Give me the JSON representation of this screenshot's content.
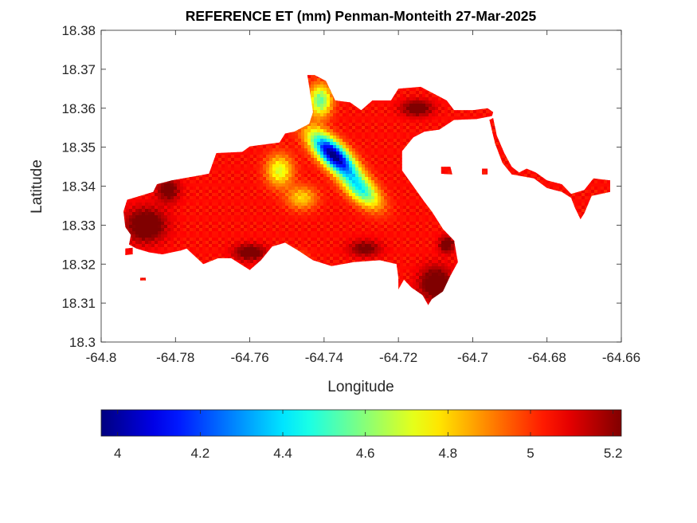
{
  "chart_data": {
    "type": "heatmap",
    "title": "REFERENCE ET (mm) Penman-Monteith 27-Mar-2025",
    "xlabel": "Longitude",
    "ylabel": "Latitude",
    "xlim": [
      -64.8,
      -64.66
    ],
    "ylim": [
      18.3,
      18.38
    ],
    "xticks": [
      -64.8,
      -64.78,
      -64.76,
      -64.74,
      -64.72,
      -64.7,
      -64.68,
      -64.66
    ],
    "xtick_labels": [
      "-64.8",
      "-64.78",
      "-64.76",
      "-64.74",
      "-64.72",
      "-64.7",
      "-64.68",
      "-64.66"
    ],
    "yticks": [
      18.3,
      18.31,
      18.32,
      18.33,
      18.34,
      18.35,
      18.36,
      18.37,
      18.38
    ],
    "ytick_labels": [
      "18.3",
      "18.31",
      "18.32",
      "18.33",
      "18.34",
      "18.35",
      "18.36",
      "18.37",
      "18.38"
    ],
    "colorbar": {
      "colormap": "jet",
      "range": [
        3.96,
        5.22
      ],
      "ticks": [
        4,
        4.2,
        4.4,
        4.6,
        4.8,
        5,
        5.2
      ],
      "tick_labels": [
        "4",
        "4.2",
        "4.4",
        "4.6",
        "4.8",
        "5",
        "5.2"
      ],
      "location": "southoutside"
    },
    "grid": false,
    "island_outline": [
      [
        -64.793,
        18.3365
      ],
      [
        -64.786,
        18.3385
      ],
      [
        -64.785,
        18.3405
      ],
      [
        -64.781,
        18.3415
      ],
      [
        -64.771,
        18.3432
      ],
      [
        -64.769,
        18.3485
      ],
      [
        -64.762,
        18.3488
      ],
      [
        -64.76,
        18.3502
      ],
      [
        -64.752,
        18.3512
      ],
      [
        -64.7505,
        18.3535
      ],
      [
        -64.748,
        18.354
      ],
      [
        -64.744,
        18.356
      ],
      [
        -64.743,
        18.359
      ],
      [
        -64.744,
        18.3655
      ],
      [
        -64.7445,
        18.3685
      ],
      [
        -64.7425,
        18.3685
      ],
      [
        -64.7395,
        18.367
      ],
      [
        -64.737,
        18.362
      ],
      [
        -64.733,
        18.3615
      ],
      [
        -64.73,
        18.3595
      ],
      [
        -64.727,
        18.362
      ],
      [
        -64.722,
        18.362
      ],
      [
        -64.72,
        18.365
      ],
      [
        -64.714,
        18.3655
      ],
      [
        -64.707,
        18.362
      ],
      [
        -64.705,
        18.3595
      ],
      [
        -64.7,
        18.3595
      ],
      [
        -64.696,
        18.36
      ],
      [
        -64.6945,
        18.359
      ],
      [
        -64.6948,
        18.358
      ],
      [
        -64.699,
        18.3572
      ],
      [
        -64.705,
        18.357
      ],
      [
        -64.709,
        18.3545
      ],
      [
        -64.713,
        18.354
      ],
      [
        -64.716,
        18.3525
      ],
      [
        -64.719,
        18.349
      ],
      [
        -64.719,
        18.344
      ],
      [
        -64.716,
        18.34
      ],
      [
        -64.713,
        18.336
      ],
      [
        -64.711,
        18.3335
      ],
      [
        -64.708,
        18.329
      ],
      [
        -64.705,
        18.326
      ],
      [
        -64.704,
        18.3205
      ],
      [
        -64.706,
        18.317
      ],
      [
        -64.708,
        18.313
      ],
      [
        -64.711,
        18.311
      ],
      [
        -64.712,
        18.3095
      ],
      [
        -64.7135,
        18.312
      ],
      [
        -64.7165,
        18.314
      ],
      [
        -64.7185,
        18.316
      ],
      [
        -64.72,
        18.3135
      ],
      [
        -64.72,
        18.3165
      ],
      [
        -64.7205,
        18.32
      ],
      [
        -64.725,
        18.321
      ],
      [
        -64.732,
        18.3205
      ],
      [
        -64.738,
        18.3195
      ],
      [
        -64.743,
        18.321
      ],
      [
        -64.747,
        18.3235
      ],
      [
        -64.7505,
        18.3255
      ],
      [
        -64.754,
        18.3245
      ],
      [
        -64.757,
        18.321
      ],
      [
        -64.76,
        18.3185
      ],
      [
        -64.765,
        18.3215
      ],
      [
        -64.7685,
        18.3215
      ],
      [
        -64.7725,
        18.32
      ],
      [
        -64.777,
        18.324
      ],
      [
        -64.7785,
        18.3235
      ],
      [
        -64.7835,
        18.3225
      ],
      [
        -64.787,
        18.323
      ],
      [
        -64.7905,
        18.324
      ],
      [
        -64.7925,
        18.325
      ],
      [
        -64.792,
        18.3275
      ],
      [
        -64.7935,
        18.3295
      ],
      [
        -64.794,
        18.3335
      ],
      [
        -64.793,
        18.3365
      ]
    ],
    "east_spit_outline": [
      [
        -64.6945,
        18.3575
      ],
      [
        -64.6935,
        18.353
      ],
      [
        -64.6915,
        18.3485
      ],
      [
        -64.6895,
        18.345
      ],
      [
        -64.6875,
        18.3435
      ],
      [
        -64.6855,
        18.3445
      ],
      [
        -64.683,
        18.3435
      ],
      [
        -64.68,
        18.3415
      ],
      [
        -64.676,
        18.3405
      ],
      [
        -64.6735,
        18.338
      ],
      [
        -64.67,
        18.339
      ],
      [
        -64.6675,
        18.342
      ],
      [
        -64.663,
        18.3415
      ],
      [
        -64.663,
        18.3385
      ],
      [
        -64.668,
        18.3375
      ],
      [
        -64.67,
        18.333
      ],
      [
        -64.671,
        18.3315
      ],
      [
        -64.6725,
        18.3345
      ],
      [
        -64.6735,
        18.337
      ],
      [
        -64.676,
        18.3385
      ],
      [
        -64.68,
        18.3395
      ],
      [
        -64.6835,
        18.342
      ],
      [
        -64.6865,
        18.3425
      ],
      [
        -64.6895,
        18.343
      ],
      [
        -64.692,
        18.346
      ],
      [
        -64.694,
        18.351
      ],
      [
        -64.6955,
        18.357
      ],
      [
        -64.6945,
        18.3575
      ]
    ],
    "islets": [
      [
        [
          -64.7935,
          18.324
        ],
        [
          -64.7915,
          18.3242
        ],
        [
          -64.7915,
          18.3225
        ],
        [
          -64.7935,
          18.3223
        ]
      ],
      [
        [
          -64.7895,
          18.3165
        ],
        [
          -64.788,
          18.3165
        ],
        [
          -64.788,
          18.3158
        ],
        [
          -64.7895,
          18.3158
        ]
      ],
      [
        [
          -64.7085,
          18.345
        ],
        [
          -64.706,
          18.345
        ],
        [
          -64.7055,
          18.343
        ],
        [
          -64.7085,
          18.3432
        ]
      ],
      [
        [
          -64.6975,
          18.3445
        ],
        [
          -64.696,
          18.3445
        ],
        [
          -64.696,
          18.343
        ],
        [
          -64.6975,
          18.343
        ]
      ]
    ],
    "et_field_features": [
      {
        "lon": -64.7375,
        "lat": 18.348,
        "amplitude": -1.1,
        "radius_lon": 0.0075,
        "radius_lat": 0.003,
        "orientation_deg": -42
      },
      {
        "lon": -64.741,
        "lat": 18.362,
        "amplitude": -0.5,
        "radius_lon": 0.003,
        "radius_lat": 0.004,
        "orientation_deg": 0
      },
      {
        "lon": -64.73,
        "lat": 18.339,
        "amplitude": -0.55,
        "radius_lon": 0.006,
        "radius_lat": 0.003,
        "orientation_deg": -40
      },
      {
        "lon": -64.752,
        "lat": 18.344,
        "amplitude": -0.35,
        "radius_lon": 0.0035,
        "radius_lat": 0.004,
        "orientation_deg": 0
      },
      {
        "lon": -64.746,
        "lat": 18.337,
        "amplitude": -0.25,
        "radius_lon": 0.004,
        "radius_lat": 0.003,
        "orientation_deg": 0
      },
      {
        "lon": -64.788,
        "lat": 18.33,
        "amplitude": 0.3,
        "radius_lon": 0.005,
        "radius_lat": 0.004,
        "orientation_deg": 0
      },
      {
        "lon": -64.782,
        "lat": 18.339,
        "amplitude": 0.22,
        "radius_lon": 0.003,
        "radius_lat": 0.003,
        "orientation_deg": 0
      },
      {
        "lon": -64.76,
        "lat": 18.323,
        "amplitude": 0.25,
        "radius_lon": 0.004,
        "radius_lat": 0.002,
        "orientation_deg": 0
      },
      {
        "lon": -64.729,
        "lat": 18.324,
        "amplitude": 0.2,
        "radius_lon": 0.004,
        "radius_lat": 0.002,
        "orientation_deg": 0
      },
      {
        "lon": -64.71,
        "lat": 18.315,
        "amplitude": 0.3,
        "radius_lon": 0.004,
        "radius_lat": 0.004,
        "orientation_deg": 0
      },
      {
        "lon": -64.707,
        "lat": 18.325,
        "amplitude": 0.25,
        "radius_lon": 0.002,
        "radius_lat": 0.002,
        "orientation_deg": 0
      },
      {
        "lon": -64.715,
        "lat": 18.36,
        "amplitude": 0.25,
        "radius_lon": 0.004,
        "radius_lat": 0.002,
        "orientation_deg": 0
      },
      {
        "lon": -64.748,
        "lat": 18.322,
        "amplitude": -0.15,
        "radius_lon": 0.003,
        "radius_lat": 0.0015,
        "orientation_deg": 0
      }
    ],
    "et_base_value": 5.05
  }
}
